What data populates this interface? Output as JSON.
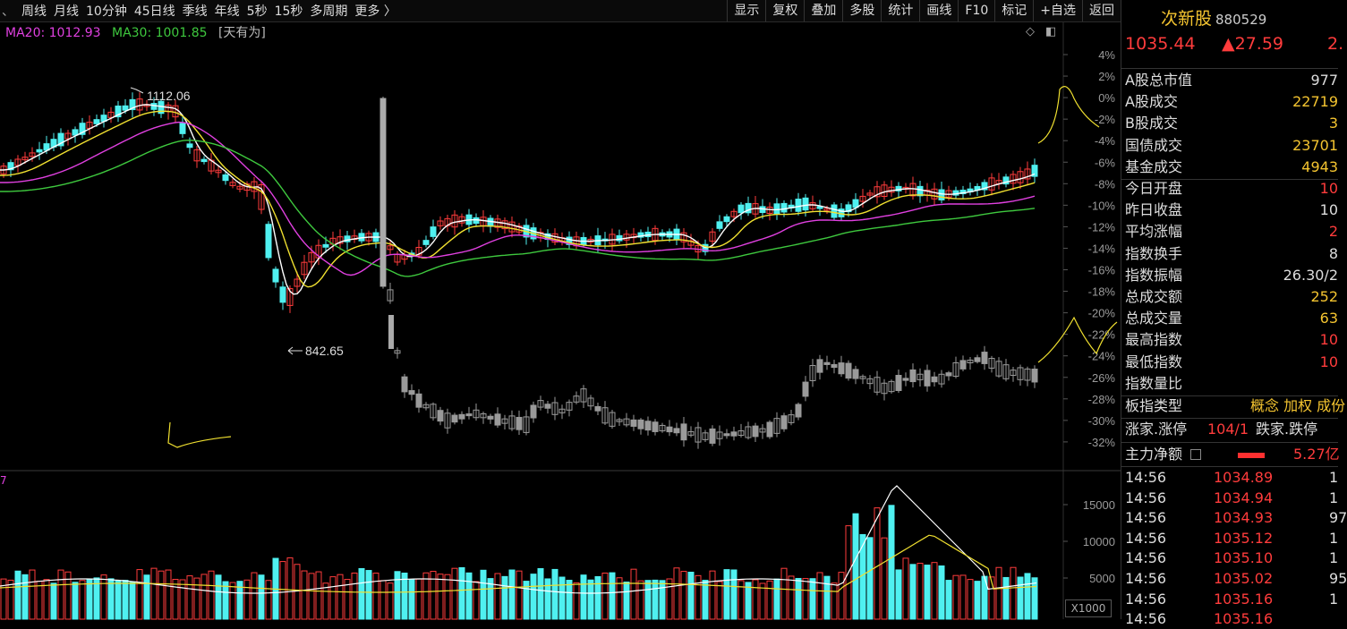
{
  "toolbar": {
    "lead_mark": "、",
    "periods": [
      "周线",
      "月线",
      "10分钟",
      "45日线",
      "季线",
      "年线",
      "5秒",
      "15秒",
      "多周期",
      "更多 〉"
    ],
    "tools": [
      "显示",
      "复权",
      "叠加",
      "多股",
      "统计",
      "画线",
      "F10",
      "标记",
      "+自选",
      "返回"
    ]
  },
  "legend": {
    "ma20": "MA20: 1012.93",
    "ma30": "MA30: 1001.85",
    "tag": "[天有为]"
  },
  "controls": {
    "diamond_icon": "◇",
    "square_icon": "◧"
  },
  "annotations": {
    "high": "1112.06",
    "low": "842.65"
  },
  "pct_axis": [
    "4%",
    "2%",
    "0%",
    "-2%",
    "-4%",
    "-6%",
    "-8%",
    "-10%",
    "-12%",
    "-14%",
    "-16%",
    "-18%",
    "-20%",
    "-22%",
    "-24%",
    "-26%",
    "-28%",
    "-30%",
    "-32%"
  ],
  "volume": {
    "corner_digit": "7",
    "axis": [
      "15000",
      "10000",
      "5000"
    ],
    "multiplier": "X1000"
  },
  "colors": {
    "up": "#ff3c3c",
    "down": "#4ff0f0",
    "ma5": "#ffffff",
    "ma10": "#f0e030",
    "ma20": "#e040e0",
    "ma30": "#3ec83e",
    "overlay": "#9a9a9a"
  },
  "panel": {
    "name": "次新股",
    "code": "880529",
    "price": "1035.44",
    "change": "▲27.59",
    "change_pct": "2.",
    "stats": [
      {
        "label": "A股总市值",
        "value": "977",
        "cls": "wh"
      },
      {
        "label": "A股成交",
        "value": "22719",
        "cls": "yl"
      },
      {
        "label": "B股成交",
        "value": "3",
        "cls": "yl"
      },
      {
        "label": "国债成交",
        "value": "23701",
        "cls": "yl"
      },
      {
        "label": "基金成交",
        "value": "4943",
        "cls": "yl"
      },
      {
        "label": "今日开盘",
        "value": "10",
        "cls": "rd"
      },
      {
        "label": "昨日收盘",
        "value": "10",
        "cls": "wh"
      },
      {
        "label": "平均涨幅",
        "value": "2",
        "cls": "rd"
      },
      {
        "label": "指数换手",
        "value": "8",
        "cls": "wh"
      },
      {
        "label": "指数振幅",
        "value": "26.30/2",
        "cls": "wh"
      },
      {
        "label": "总成交额",
        "value": "252",
        "cls": "yl"
      },
      {
        "label": "总成交量",
        "value": "63",
        "cls": "yl"
      },
      {
        "label": "最高指数",
        "value": "10",
        "cls": "rd"
      },
      {
        "label": "最低指数",
        "value": "10",
        "cls": "rd"
      },
      {
        "label": "指数量比",
        "value": "",
        "cls": "wh"
      }
    ],
    "type_label": "板指类型",
    "type_value": "概念 加权 成份",
    "limit_label": "涨家.涨停",
    "limit_value": "104/1",
    "limit_label2": "跌家.跌停",
    "flow_label": "主力净额",
    "flow_value": "5.27亿",
    "ticks": [
      {
        "time": "14:56",
        "price": "1034.89",
        "vol": "1"
      },
      {
        "time": "14:56",
        "price": "1034.94",
        "vol": "1"
      },
      {
        "time": "14:56",
        "price": "1034.93",
        "vol": "97"
      },
      {
        "time": "14:56",
        "price": "1035.12",
        "vol": "1"
      },
      {
        "time": "14:56",
        "price": "1035.10",
        "vol": "1"
      },
      {
        "time": "14:56",
        "price": "1035.02",
        "vol": "95"
      },
      {
        "time": "14:56",
        "price": "1035.16",
        "vol": "1"
      },
      {
        "time": "14:56",
        "price": "1035.16",
        "vol": ""
      }
    ]
  }
}
